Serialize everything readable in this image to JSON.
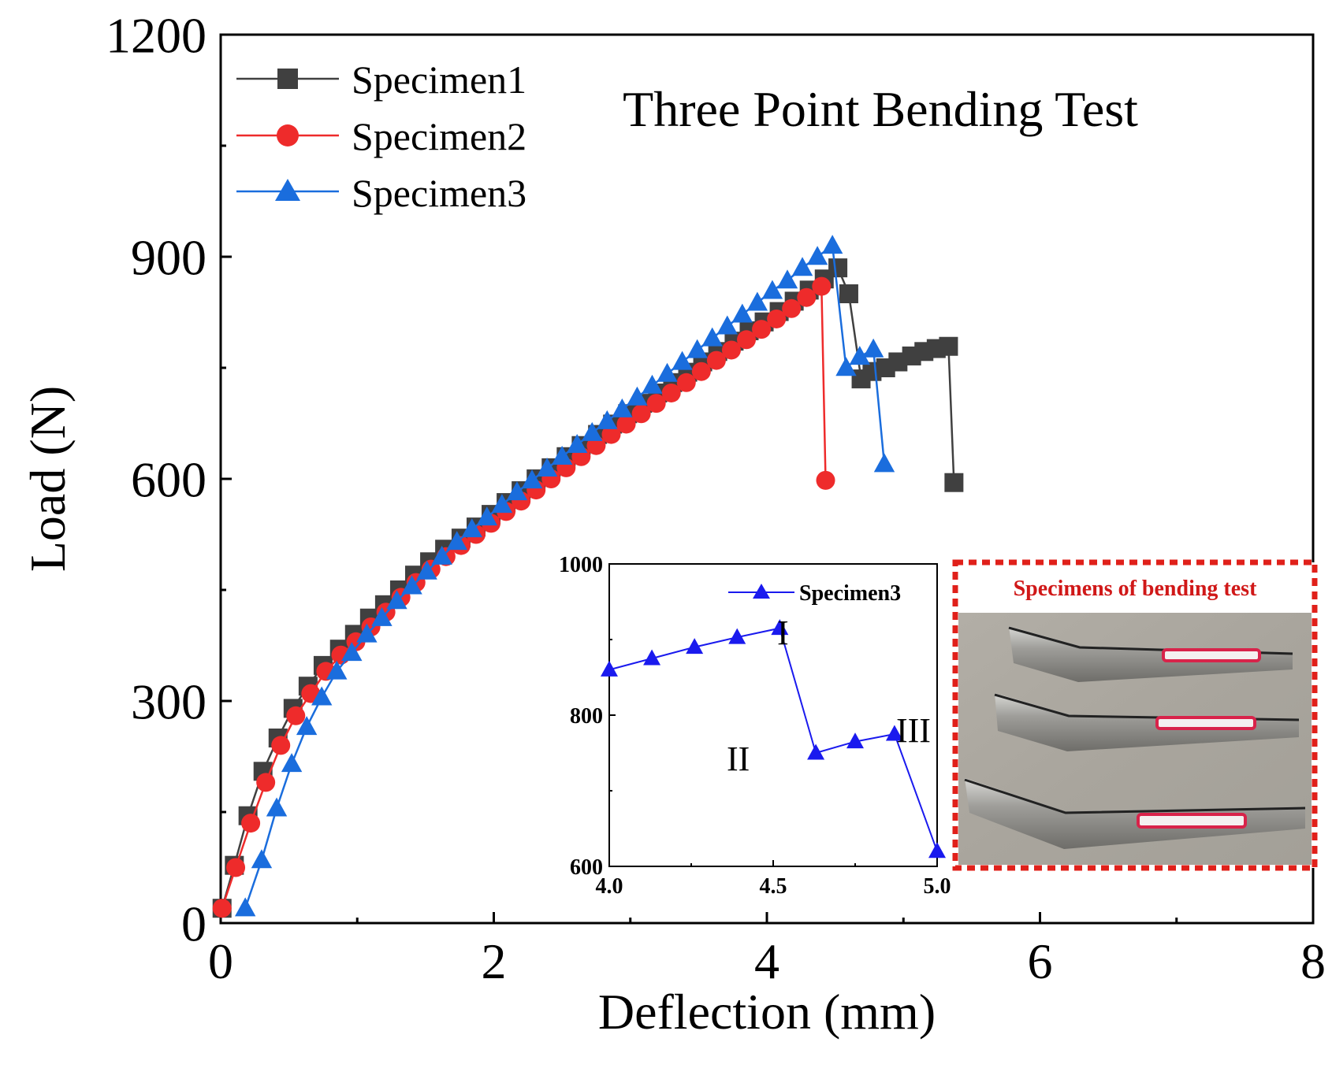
{
  "chart_data": [
    {
      "type": "line",
      "title": "Three Point Bending Test",
      "xlabel": "Deflection (mm)",
      "ylabel": "Load (N)",
      "xlim": [
        0,
        8
      ],
      "ylim": [
        0,
        1200
      ],
      "xticks": [
        "0",
        "2",
        "4",
        "6",
        "8"
      ],
      "yticks": [
        "0",
        "300",
        "600",
        "900",
        "1200"
      ],
      "legend_position": "top-left",
      "series": [
        {
          "name": "Specimen1",
          "color": "#404040",
          "marker": "square",
          "x": [
            0.01,
            0.1,
            0.2,
            0.31,
            0.42,
            0.53,
            0.64,
            0.75,
            0.87,
            0.98,
            1.09,
            1.2,
            1.31,
            1.42,
            1.53,
            1.64,
            1.76,
            1.87,
            1.98,
            2.09,
            2.2,
            2.31,
            2.42,
            2.53,
            2.64,
            2.76,
            2.87,
            2.98,
            3.09,
            3.2,
            3.31,
            3.42,
            3.53,
            3.64,
            3.76,
            3.87,
            3.98,
            4.09,
            4.2,
            4.31,
            4.42,
            4.52,
            4.6,
            4.69,
            4.77,
            4.87,
            4.96,
            5.06,
            5.15,
            5.24,
            5.33,
            5.37
          ],
          "y": [
            20,
            78,
            145,
            205,
            250,
            290,
            320,
            348,
            370,
            390,
            412,
            430,
            450,
            470,
            488,
            505,
            520,
            535,
            552,
            568,
            584,
            600,
            615,
            630,
            645,
            660,
            674,
            688,
            702,
            716,
            730,
            744,
            758,
            772,
            786,
            800,
            812,
            826,
            840,
            855,
            870,
            885,
            850,
            735,
            745,
            750,
            758,
            766,
            772,
            776,
            779,
            595
          ]
        },
        {
          "name": "Specimen2",
          "color": "#ee2b2b",
          "marker": "circle",
          "x": [
            0.01,
            0.11,
            0.22,
            0.33,
            0.44,
            0.55,
            0.66,
            0.77,
            0.88,
            0.99,
            1.1,
            1.21,
            1.32,
            1.43,
            1.54,
            1.65,
            1.76,
            1.87,
            1.98,
            2.09,
            2.2,
            2.31,
            2.42,
            2.53,
            2.64,
            2.75,
            2.86,
            2.97,
            3.08,
            3.19,
            3.3,
            3.41,
            3.52,
            3.63,
            3.74,
            3.85,
            3.96,
            4.07,
            4.18,
            4.29,
            4.4,
            4.43
          ],
          "y": [
            20,
            75,
            135,
            190,
            240,
            280,
            310,
            340,
            362,
            380,
            400,
            420,
            440,
            460,
            478,
            495,
            510,
            525,
            540,
            556,
            570,
            585,
            600,
            615,
            630,
            645,
            660,
            674,
            688,
            702,
            716,
            730,
            745,
            760,
            774,
            788,
            802,
            816,
            830,
            845,
            860,
            598
          ]
        },
        {
          "name": "Specimen3",
          "color": "#1a6ddd",
          "marker": "triangle",
          "x": [
            0.18,
            0.3,
            0.41,
            0.52,
            0.63,
            0.74,
            0.85,
            0.96,
            1.07,
            1.18,
            1.29,
            1.4,
            1.51,
            1.62,
            1.73,
            1.84,
            1.95,
            2.06,
            2.17,
            2.28,
            2.39,
            2.5,
            2.61,
            2.72,
            2.83,
            2.94,
            3.05,
            3.16,
            3.27,
            3.38,
            3.49,
            3.6,
            3.71,
            3.82,
            3.93,
            4.04,
            4.15,
            4.26,
            4.37,
            4.48,
            4.58,
            4.68,
            4.78,
            4.86
          ],
          "y": [
            20,
            85,
            155,
            215,
            265,
            305,
            340,
            365,
            390,
            412,
            435,
            455,
            475,
            495,
            515,
            532,
            548,
            565,
            582,
            598,
            614,
            630,
            646,
            662,
            678,
            694,
            710,
            726,
            742,
            758,
            774,
            790,
            806,
            822,
            838,
            854,
            868,
            885,
            900,
            915,
            750,
            765,
            775,
            620
          ]
        }
      ]
    },
    {
      "type": "line",
      "title": "",
      "xlabel": "",
      "ylabel": "",
      "xlim": [
        4.0,
        5.0
      ],
      "ylim": [
        600,
        1000
      ],
      "xticks": [
        "4.0",
        "4.5",
        "5.0"
      ],
      "yticks": [
        "600",
        "800",
        "1000"
      ],
      "legend_position": "top-right",
      "annotations": [
        "I",
        "II",
        "III"
      ],
      "series": [
        {
          "name": "Specimen3",
          "color": "#1a1aee",
          "marker": "triangle",
          "x": [
            4.0,
            4.13,
            4.26,
            4.39,
            4.52,
            4.63,
            4.75,
            4.87,
            5.0
          ],
          "y": [
            860,
            875,
            890,
            903,
            915,
            750,
            765,
            775,
            620
          ]
        }
      ]
    }
  ],
  "photo": {
    "title": "Specimens of bending test",
    "frame_color": "#e0201a"
  }
}
